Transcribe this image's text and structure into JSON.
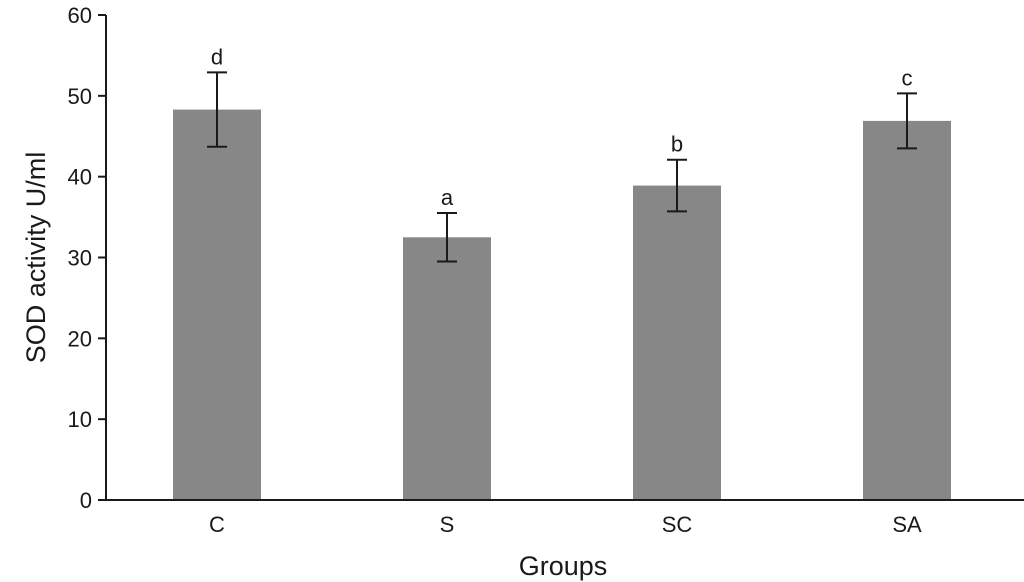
{
  "chart_data": {
    "type": "bar",
    "xlabel": "Groups",
    "ylabel": "SOD activity U/ml",
    "ylim": [
      0,
      60
    ],
    "yticks": [
      0,
      10,
      20,
      30,
      40,
      50,
      60
    ],
    "categories": [
      "C",
      "S",
      "SC",
      "SA"
    ],
    "series": [
      {
        "values": [
          48.3,
          32.5,
          38.9,
          46.9
        ],
        "error": [
          4.6,
          3.0,
          3.2,
          3.4
        ],
        "significance_labels": [
          "d",
          "a",
          "b",
          "c"
        ]
      }
    ],
    "grid": false,
    "legend": "none",
    "colors": {
      "bar": "#878787",
      "axis": "#1a1a1a"
    }
  }
}
